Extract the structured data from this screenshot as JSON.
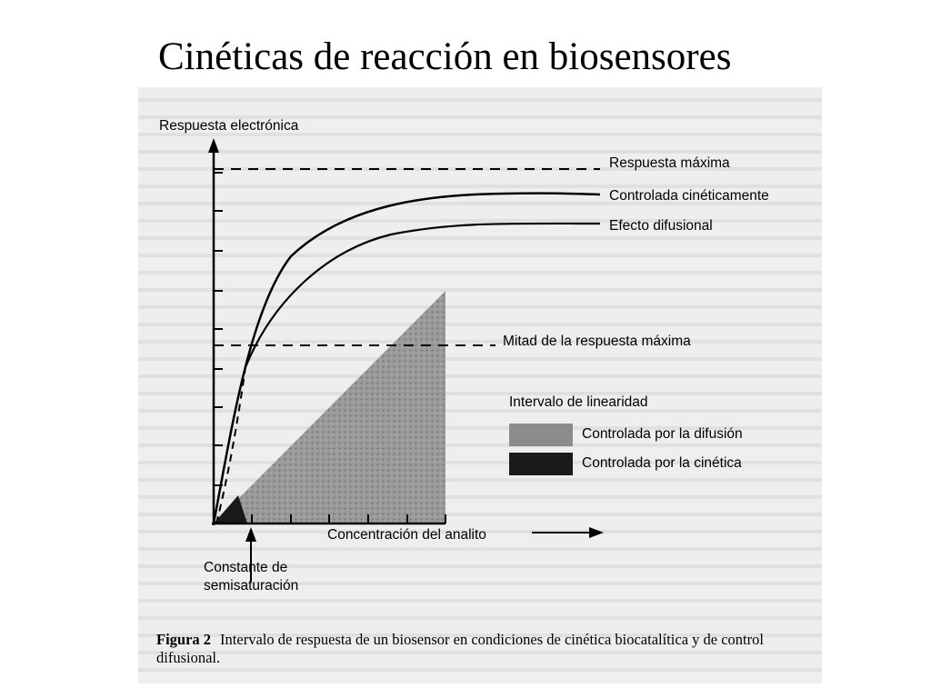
{
  "slide": {
    "title": "Cinéticas de reacción en biosensores"
  },
  "figure": {
    "y_axis_label": "Respuesta electrónica",
    "x_axis_label": "Concentración del analito",
    "curve_labels": {
      "max_response": "Respuesta máxima",
      "kinetic_control": "Controlada cinéticamente",
      "diffusion_effect": "Efecto difusional",
      "half_max": "Mitad de la respuesta máxima"
    },
    "legend": {
      "title": "Intervalo de linearidad",
      "diffusion": "Controlada por la difusión",
      "kinetic": "Controlada por la cinética",
      "diffusion_color": "#8c8c8c",
      "kinetic_color": "#1a1a1a"
    },
    "constant_label_line1": "Constante de",
    "constant_label_line2": "semisaturación"
  },
  "caption": {
    "number": "Figura 2",
    "text": "Intervalo de respuesta de un biosensor en condiciones de cinética biocatalítica y de control difusional."
  }
}
